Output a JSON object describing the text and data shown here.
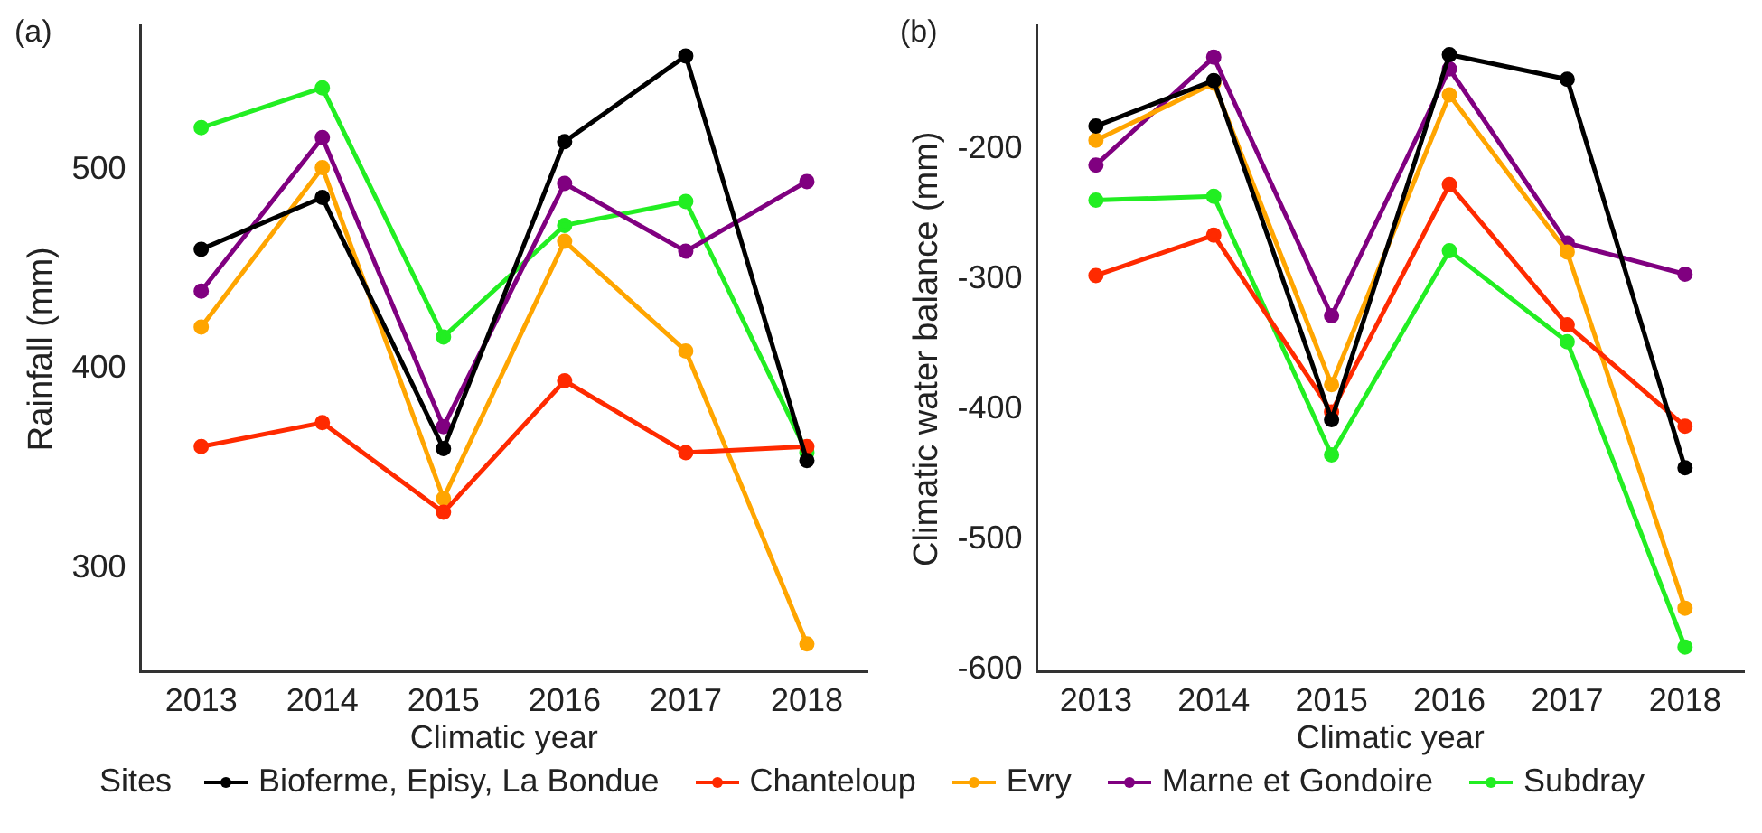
{
  "chart_data": [
    {
      "type": "line",
      "title": "(a)",
      "xlabel": "Climatic year",
      "ylabel": "Rainfall (mm)",
      "categories": [
        "2013",
        "2014",
        "2015",
        "2016",
        "2017",
        "2018"
      ],
      "ylim": [
        248,
        572
      ],
      "yticks": [
        300,
        400,
        500
      ],
      "marker": "circle",
      "line_style": "solid",
      "grid": false,
      "legend": "bottom",
      "legend_title": "Sites",
      "series": [
        {
          "name": "Bioferme, Episy, La Bondue",
          "color": "#000000",
          "values": [
            460,
            486,
            360,
            514,
            557,
            354
          ]
        },
        {
          "name": "Chanteloup",
          "color": "#ff2a00",
          "values": [
            361,
            373,
            328,
            394,
            358,
            361
          ]
        },
        {
          "name": "Evry",
          "color": "#ffa500",
          "values": [
            421,
            501,
            335,
            464,
            409,
            262
          ]
        },
        {
          "name": "Marne et Gondoire",
          "color": "#800080",
          "values": [
            439,
            516,
            371,
            493,
            459,
            494
          ]
        },
        {
          "name": "Subdray",
          "color": "#22ee22",
          "values": [
            521,
            541,
            416,
            472,
            484,
            358
          ]
        }
      ]
    },
    {
      "type": "line",
      "title": "(b)",
      "xlabel": "Climatic year",
      "ylabel": "Climatic water balance (mm)",
      "categories": [
        "2013",
        "2014",
        "2015",
        "2016",
        "2017",
        "2018"
      ],
      "ylim": [
        -602,
        -105
      ],
      "yticks": [
        -600,
        -500,
        -400,
        -300,
        -200
      ],
      "marker": "circle",
      "line_style": "solid",
      "grid": false,
      "series": [
        {
          "color": "#000000",
          "values": [
            -182,
            -147,
            -408,
            -127,
            -146,
            -445
          ]
        },
        {
          "color": "#ff2a00",
          "values": [
            -297,
            -266,
            -402,
            -227,
            -335,
            -413
          ]
        },
        {
          "color": "#ffa500",
          "values": [
            -193,
            -149,
            -381,
            -158,
            -279,
            -553
          ]
        },
        {
          "color": "#800080",
          "values": [
            -212,
            -129,
            -328,
            -138,
            -272,
            -296
          ]
        },
        {
          "color": "#22ee22",
          "values": [
            -239,
            -236,
            -435,
            -278,
            -348,
            -583
          ]
        }
      ]
    }
  ]
}
